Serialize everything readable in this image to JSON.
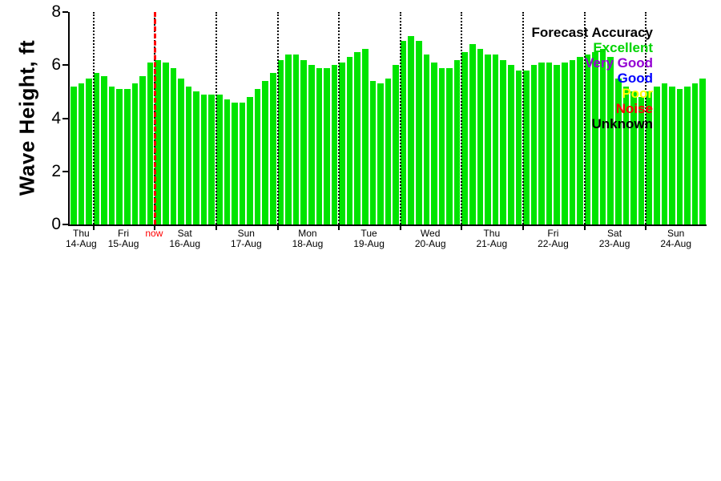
{
  "chart_data": {
    "type": "bar",
    "title": "",
    "ylabel": "Wave Height, ft",
    "xlabel": "",
    "ylim": [
      0,
      8
    ],
    "yticks": [
      0,
      2,
      4,
      6,
      8
    ],
    "bar_color": "#00e400",
    "grid_style": "dotted vertical day boundaries",
    "legend_position": "top-right",
    "values": [
      5.2,
      5.3,
      5.5,
      5.7,
      5.6,
      5.2,
      5.1,
      5.1,
      5.3,
      5.6,
      6.1,
      6.2,
      6.1,
      5.9,
      5.5,
      5.2,
      5.0,
      4.9,
      4.9,
      4.9,
      4.7,
      4.6,
      4.6,
      4.8,
      5.1,
      5.4,
      5.7,
      6.2,
      6.4,
      6.4,
      6.2,
      6.0,
      5.9,
      5.9,
      6.0,
      6.1,
      6.3,
      6.5,
      6.6,
      5.4,
      5.3,
      5.5,
      6.0,
      6.9,
      7.1,
      6.9,
      6.4,
      6.1,
      5.9,
      5.9,
      6.2,
      6.5,
      6.8,
      6.6,
      6.4,
      6.4,
      6.2,
      6.0,
      5.8,
      5.8,
      6.0,
      6.1,
      6.1,
      6.0,
      6.1,
      6.2,
      6.3,
      6.4,
      6.5,
      6.6,
      6.3,
      5.5,
      5.2,
      5.0,
      4.8,
      5.0,
      5.2,
      5.3,
      5.2,
      5.1,
      5.2,
      5.3,
      5.5
    ],
    "day_boundaries": [
      3,
      11,
      19,
      27,
      35,
      43,
      51,
      59,
      67,
      75
    ],
    "now_index": 11,
    "now_label": "now",
    "now_color": "#ff0000",
    "days": [
      {
        "name": "Thu",
        "date": "14-Aug"
      },
      {
        "name": "Fri",
        "date": "15-Aug"
      },
      {
        "name": "Sat",
        "date": "16-Aug"
      },
      {
        "name": "Sun",
        "date": "17-Aug"
      },
      {
        "name": "Mon",
        "date": "18-Aug"
      },
      {
        "name": "Tue",
        "date": "19-Aug"
      },
      {
        "name": "Wed",
        "date": "20-Aug"
      },
      {
        "name": "Thu",
        "date": "21-Aug"
      },
      {
        "name": "Fri",
        "date": "22-Aug"
      },
      {
        "name": "Sat",
        "date": "23-Aug"
      },
      {
        "name": "Sun",
        "date": "24-Aug"
      }
    ]
  },
  "legend": {
    "title": "Forecast Accuracy",
    "items": [
      {
        "label": "Excellent",
        "color": "#00d400"
      },
      {
        "label": "Very Good",
        "color": "#9400d3"
      },
      {
        "label": "Good",
        "color": "#0000ff"
      },
      {
        "label": "Poor",
        "color": "#ffff00"
      },
      {
        "label": "Noise",
        "color": "#ff0000"
      },
      {
        "label": "Unknown",
        "color": "#000000"
      }
    ]
  }
}
